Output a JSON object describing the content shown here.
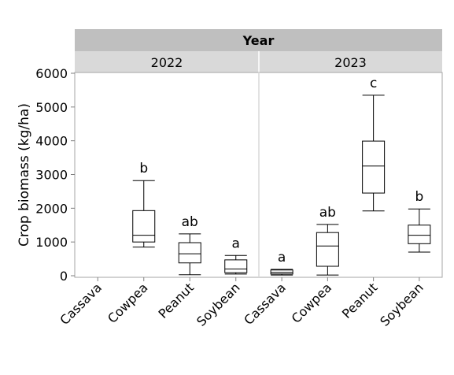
{
  "chart_data": {
    "type": "boxplot",
    "facet_header": "Year",
    "panels": [
      {
        "label": "2022",
        "categories": [
          "Cassava",
          "Cowpea",
          "Peanut",
          "Soybean"
        ],
        "boxes": [
          null,
          {
            "min": 850,
            "q1": 1000,
            "median": 1200,
            "q3": 1930,
            "max": 2820,
            "letter": "b"
          },
          {
            "min": 30,
            "q1": 380,
            "median": 650,
            "q3": 980,
            "max": 1240,
            "letter": "ab"
          },
          {
            "min": 50,
            "q1": 90,
            "median": 200,
            "q3": 470,
            "max": 600,
            "letter": "a"
          }
        ]
      },
      {
        "label": "2023",
        "categories": [
          "Cassava",
          "Cowpea",
          "Peanut",
          "Soybean"
        ],
        "boxes": [
          {
            "min": 20,
            "q1": 50,
            "median": 100,
            "q3": 170,
            "max": 190,
            "letter": "a"
          },
          {
            "min": 20,
            "q1": 280,
            "median": 880,
            "q3": 1280,
            "max": 1520,
            "letter": "ab"
          },
          {
            "min": 1920,
            "q1": 2450,
            "median": 3250,
            "q3": 3990,
            "max": 5350,
            "letter": "c"
          },
          {
            "min": 700,
            "q1": 950,
            "median": 1200,
            "q3": 1500,
            "max": 1980,
            "letter": "b"
          }
        ]
      }
    ],
    "ylabel": "Crop biomass (kg/ha)",
    "yticks": [
      0,
      1000,
      2000,
      3000,
      4000,
      5000,
      6000
    ],
    "ylim": [
      0,
      6000
    ],
    "grid": false,
    "colors": {
      "header_dark": "#bfbfbf",
      "header_light": "#d9d9d9",
      "frame": "#a6a6a6",
      "box": "#000000"
    }
  }
}
